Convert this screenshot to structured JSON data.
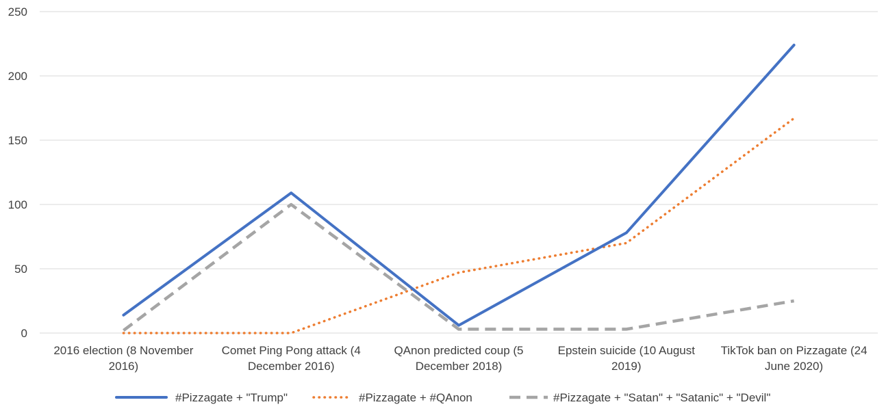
{
  "chart_data": {
    "type": "line",
    "title": "",
    "xlabel": "",
    "ylabel": "",
    "ylim": [
      0,
      250
    ],
    "yticks": [
      0,
      50,
      100,
      150,
      200,
      250
    ],
    "grid": true,
    "legend_position": "bottom",
    "categories": [
      [
        "2016 election (8 November",
        "2016)"
      ],
      [
        "Comet Ping Pong attack (4",
        "December 2016)"
      ],
      [
        "QAnon predicted coup (5",
        "December 2018)"
      ],
      [
        "Epstein suicide (10 August",
        "2019)"
      ],
      [
        "TikTok ban on Pizzagate (24",
        "June 2020)"
      ]
    ],
    "series": [
      {
        "name": "#Pizzagate + \"Trump\"",
        "values": [
          14,
          109,
          6,
          78,
          224
        ],
        "color": "#4472c4",
        "style": "solid"
      },
      {
        "name": "#Pizzagate + #QAnon",
        "values": [
          0,
          0,
          47,
          70,
          167
        ],
        "color": "#ed7d31",
        "style": "dotted"
      },
      {
        "name": "#Pizzagate + \"Satan\" + \"Satanic\" + \"Devil\"",
        "values": [
          2,
          100,
          3,
          3,
          25
        ],
        "color": "#a5a5a5",
        "style": "dashed"
      }
    ]
  }
}
